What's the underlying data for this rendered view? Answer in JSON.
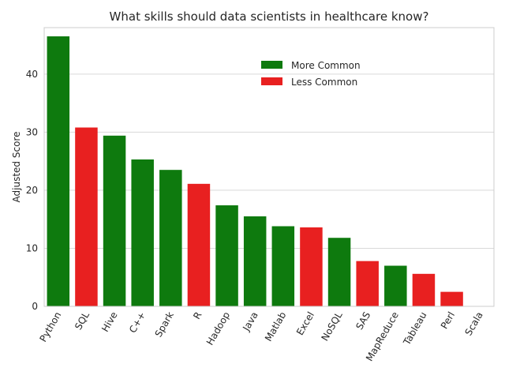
{
  "chart_data": {
    "type": "bar",
    "title": "What skills should data scientists in healthcare know?",
    "xlabel": "",
    "ylabel": "Adjusted Score",
    "ylim": [
      0,
      48
    ],
    "yticks": [
      0,
      10,
      20,
      30,
      40
    ],
    "grid": "horizontal",
    "legend_position": "top-right",
    "categories": [
      "Python",
      "SQL",
      "Hive",
      "C++",
      "Spark",
      "R",
      "Hadoop",
      "Java",
      "Matlab",
      "Excel",
      "NoSQL",
      "SAS",
      "MapReduce",
      "Tableau",
      "Perl",
      "Scala"
    ],
    "values": [
      46.5,
      30.8,
      29.4,
      25.3,
      23.5,
      21.1,
      17.4,
      15.5,
      13.8,
      13.6,
      11.8,
      7.8,
      7.0,
      5.6,
      2.5,
      0
    ],
    "groups": [
      "More Common",
      "Less Common",
      "More Common",
      "More Common",
      "More Common",
      "Less Common",
      "More Common",
      "More Common",
      "More Common",
      "Less Common",
      "More Common",
      "Less Common",
      "More Common",
      "Less Common",
      "Less Common",
      "More Common"
    ],
    "legend": [
      {
        "label": "More Common",
        "color": "#0e7a0e"
      },
      {
        "label": "Less Common",
        "color": "#e82020"
      }
    ]
  }
}
